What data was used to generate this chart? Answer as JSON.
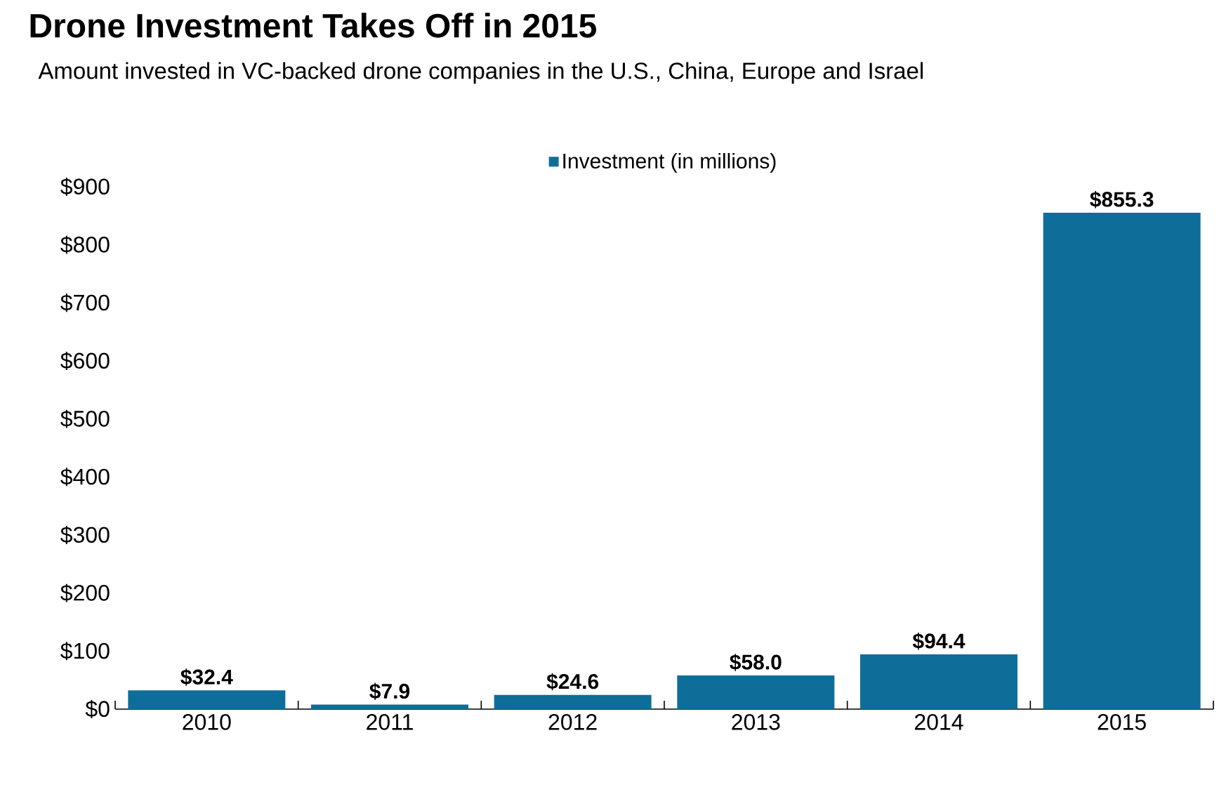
{
  "chart_data": {
    "type": "bar",
    "title": "Drone Investment Takes Off in 2015",
    "subtitle": "Amount invested in VC-backed drone companies in the U.S., China, Europe and Israel",
    "categories": [
      "2010",
      "2011",
      "2012",
      "2013",
      "2014",
      "2015"
    ],
    "series": [
      {
        "name": "Investment (in millions)",
        "color": "#0f6e99",
        "values": [
          32.4,
          7.9,
          24.6,
          58.0,
          94.4,
          855.3
        ],
        "value_labels": [
          "$32.4",
          "$7.9",
          "$24.6",
          "$58.0",
          "$94.4",
          "$855.3"
        ]
      }
    ],
    "ylim": [
      0,
      900
    ],
    "yticks": [
      {
        "value": 0,
        "label": "$0"
      },
      {
        "value": 100,
        "label": "$100"
      },
      {
        "value": 200,
        "label": "$200"
      },
      {
        "value": 300,
        "label": "$300"
      },
      {
        "value": 400,
        "label": "$400"
      },
      {
        "value": 500,
        "label": "$500"
      },
      {
        "value": 600,
        "label": "$600"
      },
      {
        "value": 700,
        "label": "$700"
      },
      {
        "value": 800,
        "label": "$800"
      },
      {
        "value": 900,
        "label": "$900"
      }
    ],
    "grid": false,
    "legend": "top"
  }
}
